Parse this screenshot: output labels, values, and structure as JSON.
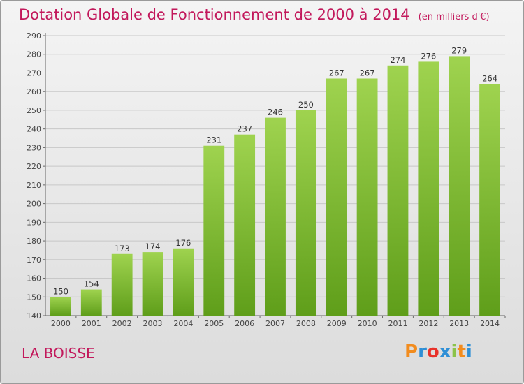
{
  "header": {
    "title": "Dotation Globale de Fonctionnement de 2000 à 2014",
    "unit": "(en milliers d'€)"
  },
  "footer": {
    "commune": "LA BOISSE",
    "logo_text": "Proxiti",
    "logo_letters": [
      {
        "ch": "P",
        "color": "#f28c1e"
      },
      {
        "ch": "r",
        "color": "#2e8fd6"
      },
      {
        "ch": "o",
        "color": "#e8322a"
      },
      {
        "ch": "x",
        "color": "#2e8fd6"
      },
      {
        "ch": "i",
        "color": "#8bc34a"
      },
      {
        "ch": "t",
        "color": "#f28c1e"
      },
      {
        "ch": "i",
        "color": "#2e8fd6"
      }
    ]
  },
  "colors": {
    "title": "#c2185b",
    "bar_top": "#9fd34f",
    "bar_bottom": "#5f9e1a",
    "grid": "#c8c8c8"
  },
  "chart_data": {
    "type": "bar",
    "title": "Dotation Globale de Fonctionnement de 2000 à 2014",
    "subtitle": "(en milliers d'€)",
    "categories": [
      "2000",
      "2001",
      "2002",
      "2003",
      "2004",
      "2005",
      "2006",
      "2007",
      "2008",
      "2009",
      "2010",
      "2011",
      "2012",
      "2013",
      "2014"
    ],
    "values": [
      150,
      154,
      173,
      174,
      176,
      231,
      237,
      246,
      250,
      267,
      267,
      274,
      276,
      279,
      264
    ],
    "ylim": [
      140,
      290
    ],
    "yticks": [
      140,
      150,
      160,
      170,
      180,
      190,
      200,
      210,
      220,
      230,
      240,
      250,
      260,
      270,
      280,
      290
    ],
    "grid": true,
    "data_labels": true
  }
}
